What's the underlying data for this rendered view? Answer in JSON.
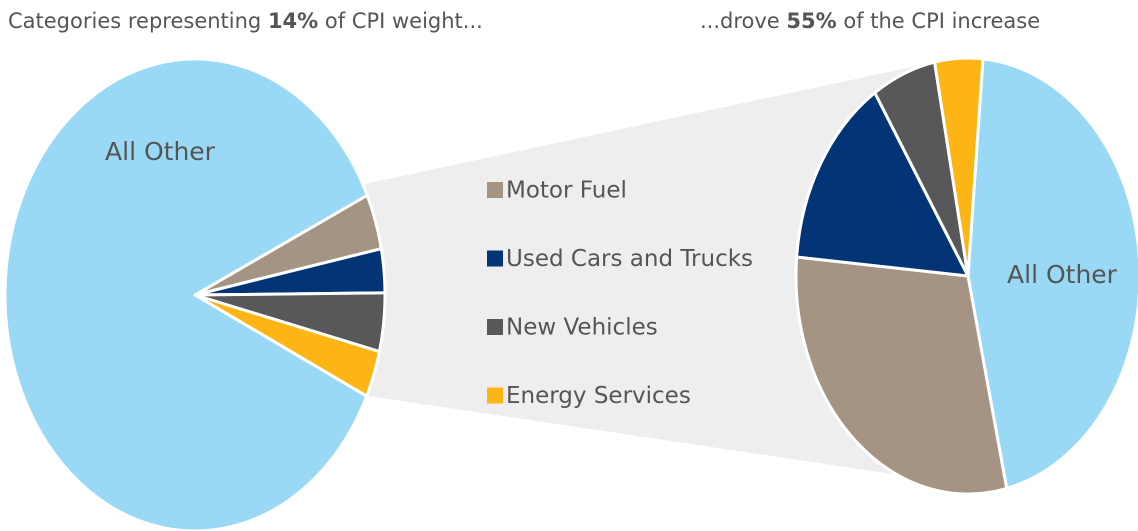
{
  "chart_data": [
    {
      "type": "pie",
      "title": [
        "Categories representing ",
        "14%",
        " of CPI weight..."
      ],
      "categories": [
        "All Other",
        "Motor Fuel",
        "Used Cars and Trucks",
        "New Vehicles",
        "Energy Services"
      ],
      "values": [
        86,
        3.8,
        3,
        4,
        3.2
      ],
      "colors": [
        "#99d9f5",
        "#a59484",
        "#033576",
        "#58585a",
        "#fdb515"
      ]
    },
    {
      "type": "pie",
      "title": [
        "...drove ",
        "55%",
        " of the CPI increase"
      ],
      "categories": [
        "All Other",
        "Motor Fuel",
        "Used Cars and Trucks",
        "New Vehicles",
        "Energy Services"
      ],
      "values": [
        45,
        30,
        14.5,
        6,
        4.5
      ],
      "colors": [
        "#99d9f5",
        "#a59484",
        "#033576",
        "#58585a",
        "#fdb515"
      ]
    }
  ]
}
